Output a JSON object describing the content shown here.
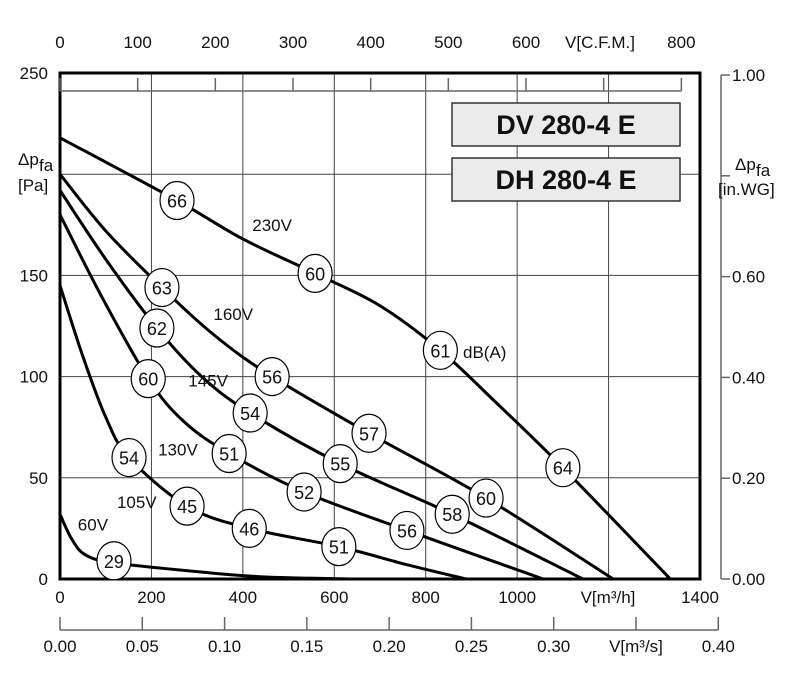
{
  "chart_data": {
    "type": "line",
    "title": "",
    "models": [
      "DV 280-4 E",
      "DH 280-4 E"
    ],
    "xlabel": "V[m³/h]",
    "xlabel_top": "V[C.F.M.]",
    "xlabel_bottom": "V[m³/s]",
    "ylabel": "Δp_fa [Pa]",
    "ylabel_right": "Δp_fa [in.WG]",
    "ylabel_parts": {
      "delta_p": "Δp",
      "sub": "fa",
      "unit_left": "[Pa]",
      "unit_right": "[in.WG]"
    },
    "xlim": [
      0,
      1400
    ],
    "ylim": [
      0,
      250
    ],
    "x_ticks": [
      0,
      200,
      400,
      600,
      800,
      1000,
      1400
    ],
    "y_ticks": [
      0,
      50,
      100,
      150,
      250
    ],
    "top_ticks": [
      "0",
      "100",
      "200",
      "300",
      "400",
      "500",
      "600",
      "800"
    ],
    "top_tick_values": [
      0,
      100,
      200,
      300,
      400,
      500,
      600,
      700,
      800
    ],
    "bottom_ticks": [
      "0.00",
      "0.05",
      "0.10",
      "0.15",
      "0.20",
      "0.25",
      "0.30",
      "0.40"
    ],
    "bottom_tick_values": [
      0,
      0.05,
      0.1,
      0.15,
      0.2,
      0.25,
      0.3,
      0.35,
      0.4
    ],
    "right_ticks": [
      "0.00",
      "0.20",
      "0.40",
      "0.60",
      "1.00"
    ],
    "right_tick_values": [
      0,
      0.2,
      0.4,
      0.6,
      0.8,
      1.0
    ],
    "grid": true,
    "noise_unit": "dB(A)",
    "series": [
      {
        "name": "230V",
        "label_at": [
          464,
          175
        ],
        "points": [
          [
            0,
            218
          ],
          [
            256,
            187
          ],
          [
            400,
            168
          ],
          [
            558,
            151
          ],
          [
            700,
            135
          ],
          [
            832,
            113
          ],
          [
            950,
            88
          ],
          [
            1100,
            55
          ],
          [
            1335,
            0
          ]
        ],
        "noise": [
          {
            "x": 256,
            "y": 187,
            "v": "66"
          },
          {
            "x": 558,
            "y": 151,
            "v": "60"
          },
          {
            "x": 832,
            "y": 113,
            "v": "61"
          },
          {
            "x": 1100,
            "y": 55,
            "v": "64"
          }
        ]
      },
      {
        "name": "160V",
        "label_at": [
          379,
          131
        ],
        "points": [
          [
            0,
            200
          ],
          [
            100,
            172
          ],
          [
            223,
            144
          ],
          [
            340,
            120
          ],
          [
            464,
            100
          ],
          [
            676,
            72
          ],
          [
            932,
            40
          ],
          [
            1210,
            0
          ]
        ],
        "noise": [
          {
            "x": 223,
            "y": 144,
            "v": "63"
          },
          {
            "x": 464,
            "y": 100,
            "v": "56"
          },
          {
            "x": 676,
            "y": 72,
            "v": "57"
          },
          {
            "x": 932,
            "y": 40,
            "v": "60"
          }
        ]
      },
      {
        "name": "145V",
        "label_at": [
          324,
          98
        ],
        "points": [
          [
            0,
            192
          ],
          [
            100,
            158
          ],
          [
            212,
            124
          ],
          [
            310,
            100
          ],
          [
            416,
            82
          ],
          [
            613,
            57
          ],
          [
            858,
            32
          ],
          [
            1144,
            0
          ]
        ],
        "noise": [
          {
            "x": 212,
            "y": 124,
            "v": "62"
          },
          {
            "x": 416,
            "y": 82,
            "v": "54"
          },
          {
            "x": 613,
            "y": 57,
            "v": "55"
          },
          {
            "x": 858,
            "y": 32,
            "v": "58"
          }
        ]
      },
      {
        "name": "130V",
        "label_at": [
          258,
          64
        ],
        "points": [
          [
            0,
            180
          ],
          [
            90,
            140
          ],
          [
            193,
            99
          ],
          [
            270,
            78
          ],
          [
            370,
            62
          ],
          [
            534,
            43
          ],
          [
            759,
            24
          ],
          [
            1057,
            0
          ]
        ],
        "noise": [
          {
            "x": 193,
            "y": 99,
            "v": "60"
          },
          {
            "x": 370,
            "y": 62,
            "v": "51"
          },
          {
            "x": 534,
            "y": 43,
            "v": "52"
          },
          {
            "x": 759,
            "y": 24,
            "v": "56"
          }
        ]
      },
      {
        "name": "105V",
        "label_at": [
          168,
          38
        ],
        "points": [
          [
            0,
            145
          ],
          [
            50,
            110
          ],
          [
            100,
            80
          ],
          [
            151,
            60
          ],
          [
            278,
            36
          ],
          [
            414,
            25
          ],
          [
            610,
            16
          ],
          [
            760,
            7
          ],
          [
            888,
            0
          ]
        ],
        "noise": [
          {
            "x": 151,
            "y": 60,
            "v": "54"
          },
          {
            "x": 278,
            "y": 36,
            "v": "45"
          },
          {
            "x": 414,
            "y": 25,
            "v": "46"
          },
          {
            "x": 610,
            "y": 16,
            "v": "51"
          }
        ]
      },
      {
        "name": "60V",
        "label_at": [
          72,
          27
        ],
        "points": [
          [
            0,
            32
          ],
          [
            25,
            20
          ],
          [
            55,
            12
          ],
          [
            118,
            8
          ],
          [
            306,
            3.5
          ],
          [
            450,
            1
          ],
          [
            650,
            0
          ]
        ],
        "noise": [
          {
            "x": 118,
            "y": 9,
            "v": "29"
          }
        ]
      }
    ]
  }
}
